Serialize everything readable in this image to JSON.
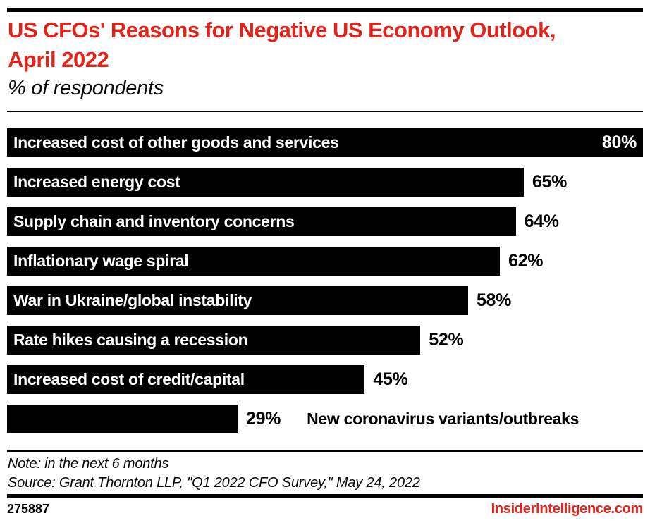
{
  "header": {
    "title": "US CFOs' Reasons for Negative US Economy Outlook, April 2022",
    "subtitle": "% of respondents"
  },
  "chart_data": {
    "type": "bar",
    "orientation": "horizontal",
    "title": "US CFOs' Reasons for Negative US Economy Outlook, April 2022",
    "subtitle": "% of respondents",
    "unit": "%",
    "xlim": [
      0,
      80
    ],
    "grid": false,
    "legend": false,
    "categories": [
      "Increased cost of other goods and services",
      "Increased energy cost",
      "Supply chain and inventory concerns",
      "Inflationary wage spiral",
      "War in Ukraine/global instability",
      "Rate hikes causing a recession",
      "Increased cost of credit/capital",
      "New coronavirus variants/outbreaks"
    ],
    "values": [
      80,
      65,
      64,
      62,
      58,
      52,
      45,
      29
    ],
    "value_labels": [
      "80%",
      "65%",
      "64%",
      "62%",
      "58%",
      "52%",
      "45%",
      "29%"
    ],
    "bar_color": "#000000",
    "inside_label_color": "#ffffff",
    "outside_label_color": "#000000",
    "value_inside_indexes": [
      0
    ],
    "category_outside_indexes": [
      7
    ]
  },
  "footer": {
    "note": "Note: in the next 6 months",
    "source": "Source: Grant Thornton LLP, \"Q1 2022 CFO Survey,\" May 24, 2022",
    "chart_id": "275887",
    "site": "InsiderIntelligence.com"
  },
  "colors": {
    "accent_red": "#e2231a",
    "bar_black": "#000000",
    "background": "#ffffff"
  }
}
